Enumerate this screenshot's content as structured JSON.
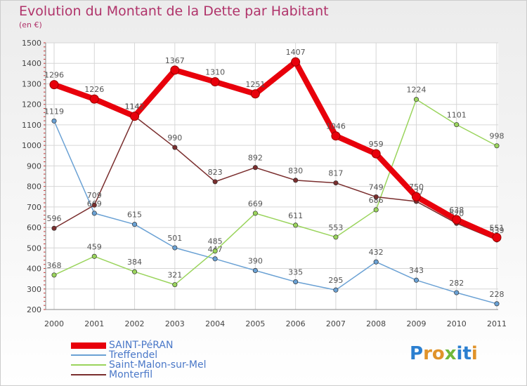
{
  "chart_data": {
    "type": "line",
    "title": "Evolution du Montant de la Dette par Habitant",
    "subtitle": "(en €)",
    "x": [
      "2000",
      "2001",
      "2002",
      "2003",
      "2004",
      "2005",
      "2006",
      "2007",
      "2008",
      "2009",
      "2010",
      "2011"
    ],
    "ylim": [
      200,
      1500
    ],
    "yticks": [
      200,
      300,
      400,
      500,
      600,
      700,
      800,
      900,
      1000,
      1100,
      1200,
      1300,
      1400,
      1500
    ],
    "grid": true,
    "legend_position": "bottom-left",
    "series": [
      {
        "name": "SAINT-PéRAN",
        "color": "#e8000b",
        "emphasis": true,
        "values": [
          1296,
          1226,
          1142,
          1367,
          1310,
          1251,
          1407,
          1046,
          959,
          750,
          638,
          551
        ]
      },
      {
        "name": "Treffendel",
        "color": "#6aa1d4",
        "emphasis": false,
        "values": [
          1119,
          669,
          615,
          501,
          447,
          390,
          335,
          295,
          432,
          343,
          282,
          228
        ]
      },
      {
        "name": "Saint-Malon-sur-Mel",
        "color": "#9ad45c",
        "emphasis": false,
        "values": [
          368,
          459,
          384,
          321,
          485,
          669,
          611,
          553,
          686,
          1224,
          1101,
          998
        ]
      },
      {
        "name": "Monterfil",
        "color": "#7a2e2e",
        "emphasis": false,
        "values": [
          596,
          709,
          1142,
          990,
          823,
          892,
          830,
          817,
          749,
          727,
          620,
          539
        ]
      }
    ]
  },
  "brand": {
    "letters": [
      {
        "ch": "P",
        "color": "#2b7fd0"
      },
      {
        "ch": "r",
        "color": "#e0932a"
      },
      {
        "ch": "o",
        "color": "#e0932a"
      },
      {
        "ch": "x",
        "color": "#6fb83a"
      },
      {
        "ch": "i",
        "color": "#2b7fd0"
      },
      {
        "ch": "t",
        "color": "#2b7fd0"
      },
      {
        "ch": "i",
        "color": "#e0932a"
      }
    ]
  }
}
